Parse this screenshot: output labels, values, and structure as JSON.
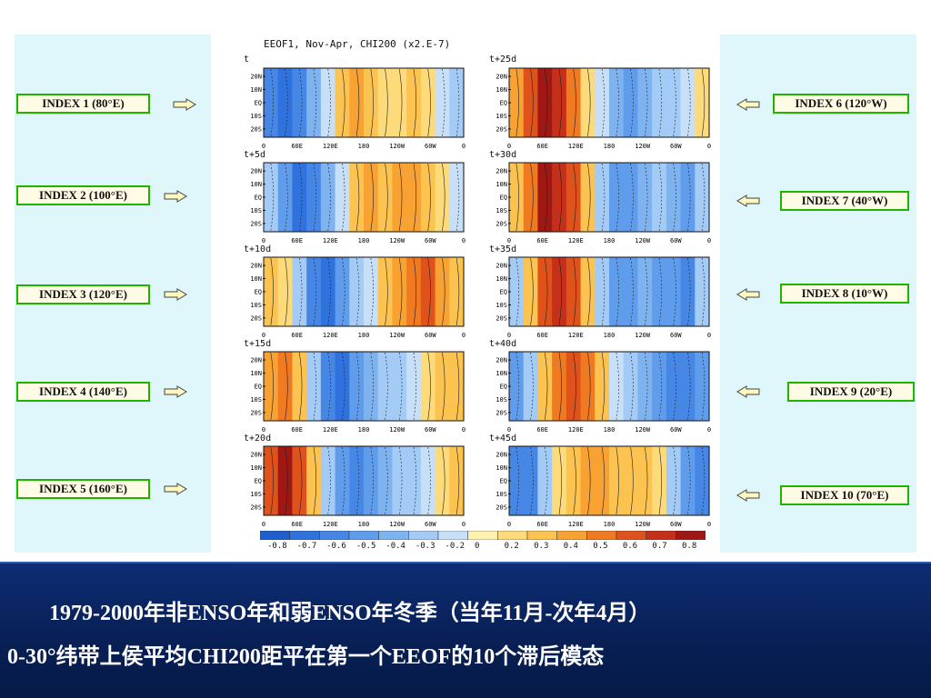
{
  "figure": {
    "title": "EEOF1, Nov-Apr, CHI200 (x2.E-7)",
    "lags": [
      "t",
      "t+5d",
      "t+10d",
      "t+15d",
      "t+20d",
      "t+25d",
      "t+30d",
      "t+35d",
      "t+40d",
      "t+45d"
    ],
    "y_ticks": [
      "20N",
      "10N",
      "EQ",
      "10S",
      "20S"
    ],
    "x_ticks": [
      "0",
      "60E",
      "120E",
      "180",
      "120W",
      "60W",
      "0"
    ]
  },
  "indices_left": [
    {
      "label": "INDEX 1 (80°E)"
    },
    {
      "label": "INDEX 2 (100°E)"
    },
    {
      "label": "INDEX 3 (120°E)"
    },
    {
      "label": "INDEX 4 (140°E)"
    },
    {
      "label": "INDEX 5 (160°E)"
    }
  ],
  "indices_right": [
    {
      "label": "INDEX 6 (120°W)"
    },
    {
      "label": "INDEX 7 (40°W)"
    },
    {
      "label": "INDEX 8 (10°W)"
    },
    {
      "label": "INDEX 9 (20°E)"
    },
    {
      "label": "INDEX 10 (70°E)"
    }
  ],
  "caption": {
    "line1": "1979-2000年非ENSO年和弱ENSO年冬季（当年11月-次年4月）",
    "line2": "0-30°纬带上侯平均CHI200距平在第一个EEOF的10个滞后模态"
  },
  "colors": {
    "panel_bg": "#dff6fb",
    "index_border": "#1fb400",
    "index_fill": "#fffbe4",
    "band": "#082056"
  },
  "chart_data": {
    "type": "heatmap",
    "title": "EEOF1, Nov-Apr, CHI200 (x2.E-7)",
    "xlabel": "",
    "ylabel": "",
    "x_range": [
      "0",
      "0"
    ],
    "y_range": [
      "20S",
      "20N"
    ],
    "colorbar": {
      "levels": [
        -0.8,
        -0.7,
        -0.6,
        -0.5,
        -0.4,
        -0.3,
        -0.2,
        0,
        0.2,
        0.3,
        0.4,
        0.5,
        0.6,
        0.7,
        0.8
      ],
      "level_labels": [
        "-0.8",
        "-0.7",
        "-0.6",
        "-0.5",
        "-0.4",
        "-0.3",
        "-0.2",
        "0",
        "0.2",
        "0.3",
        "0.4",
        "0.5",
        "0.6",
        "0.7",
        "0.8"
      ],
      "colors": [
        "#1e5fd0",
        "#2f72dd",
        "#4687e6",
        "#5f9ceb",
        "#7fb3f0",
        "#a3cbf5",
        "#c7e0f8",
        "#fff2b0",
        "#fddb7a",
        "#fcc350",
        "#f8a233",
        "#f07a22",
        "#e0521b",
        "#c5301a",
        "#a01814"
      ]
    },
    "panels": [
      {
        "lag": "t",
        "pattern": [
          -0.6,
          -0.7,
          -0.6,
          -0.4,
          -0.2,
          0.3,
          0.4,
          0.3,
          0.2,
          0.2,
          0.3,
          0.2,
          -0.2,
          -0.3
        ]
      },
      {
        "lag": "t+5d",
        "pattern": [
          -0.3,
          -0.5,
          -0.7,
          -0.6,
          -0.4,
          -0.2,
          0.3,
          0.4,
          0.3,
          0.4,
          0.4,
          0.3,
          0.2,
          -0.2
        ]
      },
      {
        "lag": "t+10d",
        "pattern": [
          0.3,
          0.2,
          -0.3,
          -0.6,
          -0.7,
          -0.5,
          -0.3,
          -0.2,
          0.3,
          0.4,
          0.5,
          0.6,
          0.4,
          0.3
        ]
      },
      {
        "lag": "t+15d",
        "pattern": [
          0.4,
          0.5,
          0.3,
          -0.3,
          -0.6,
          -0.7,
          -0.5,
          -0.4,
          -0.3,
          -0.3,
          -0.2,
          0.2,
          0.3,
          0.3
        ]
      },
      {
        "lag": "t+20d",
        "pattern": [
          0.6,
          0.8,
          0.6,
          0.3,
          -0.3,
          -0.5,
          -0.6,
          -0.5,
          -0.4,
          -0.3,
          -0.3,
          -0.2,
          0.2,
          0.3
        ]
      },
      {
        "lag": "t+25d",
        "pattern": [
          0.4,
          0.6,
          0.8,
          0.7,
          0.5,
          0.2,
          -0.2,
          -0.4,
          -0.5,
          -0.4,
          -0.3,
          -0.3,
          -0.2,
          0.2
        ]
      },
      {
        "lag": "t+30d",
        "pattern": [
          0.3,
          0.5,
          0.8,
          0.7,
          0.6,
          0.3,
          -0.3,
          -0.5,
          -0.5,
          -0.4,
          -0.3,
          -0.4,
          -0.5,
          -0.3
        ]
      },
      {
        "lag": "t+35d",
        "pattern": [
          -0.3,
          0.3,
          0.6,
          0.7,
          0.6,
          0.3,
          -0.3,
          -0.5,
          -0.5,
          -0.4,
          -0.5,
          -0.5,
          -0.6,
          -0.3
        ]
      },
      {
        "lag": "t+40d",
        "pattern": [
          -0.5,
          -0.3,
          0.3,
          0.5,
          0.6,
          0.5,
          0.3,
          -0.2,
          -0.3,
          -0.4,
          -0.5,
          -0.6,
          -0.6,
          -0.5
        ]
      },
      {
        "lag": "t+45d",
        "pattern": [
          -0.6,
          -0.6,
          -0.3,
          0.2,
          0.3,
          0.4,
          0.4,
          0.3,
          0.3,
          0.3,
          0.2,
          -0.3,
          -0.5,
          -0.6
        ]
      }
    ]
  }
}
